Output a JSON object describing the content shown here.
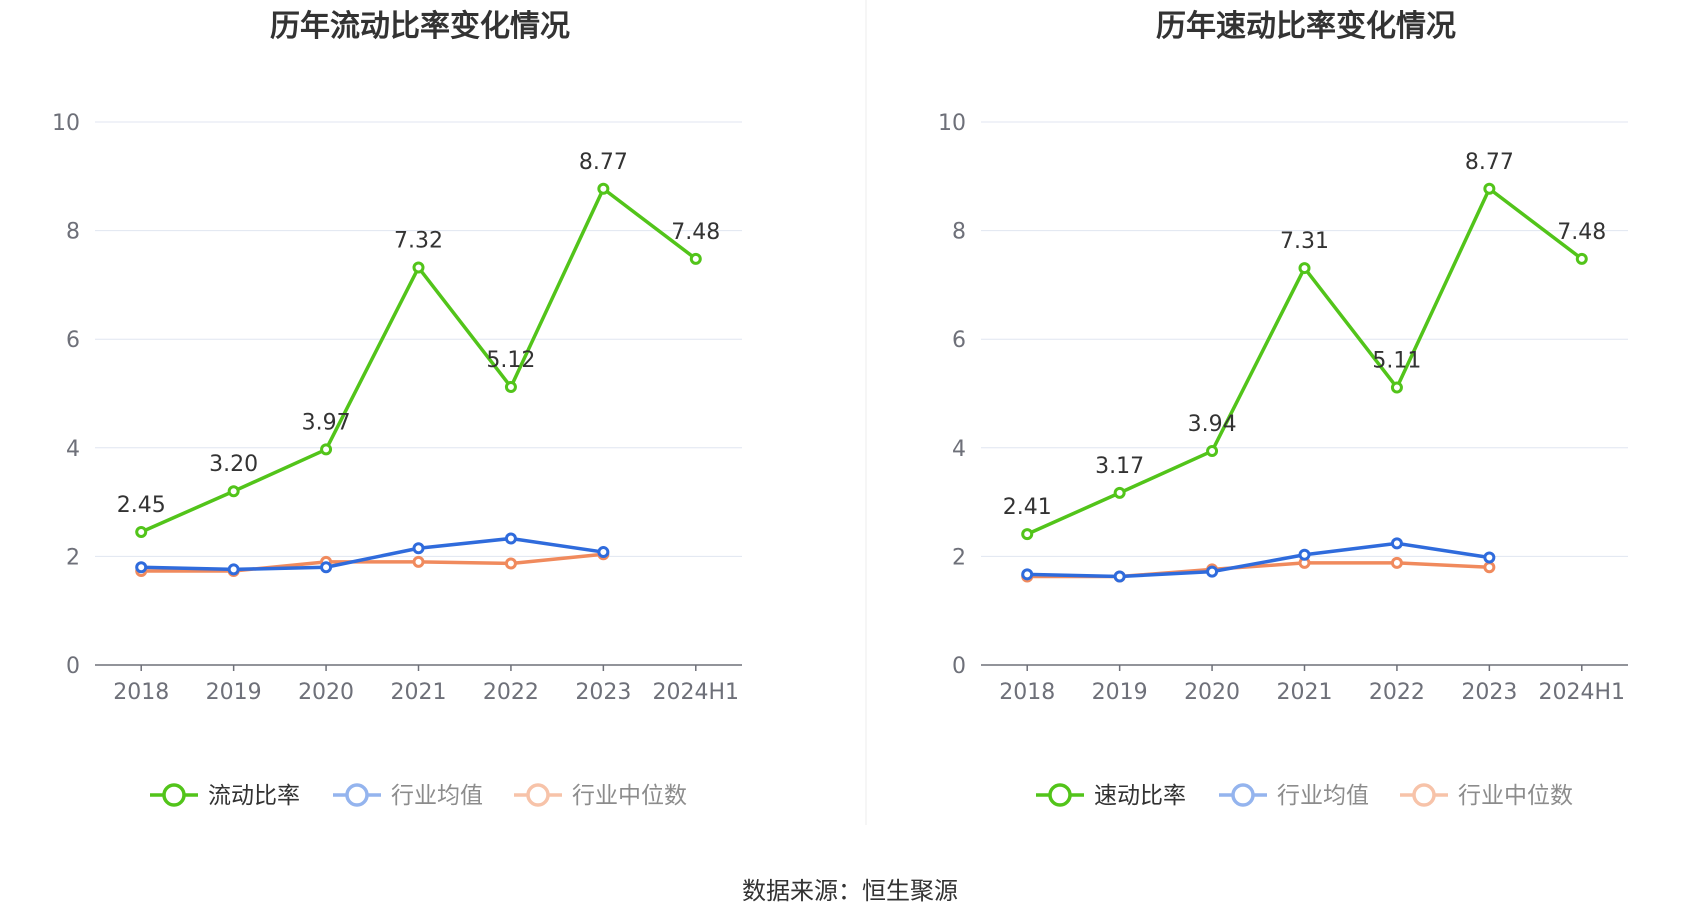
{
  "chart_data": [
    {
      "type": "line",
      "title": "历年流动比率变化情况",
      "categories": [
        "2018",
        "2019",
        "2020",
        "2021",
        "2022",
        "2023",
        "2024H1"
      ],
      "ylim": [
        0,
        10
      ],
      "yticks": [
        "0",
        "2",
        "4",
        "6",
        "8",
        "10"
      ],
      "grid": true,
      "legend_position": "bottom",
      "series": [
        {
          "name": "流动比率",
          "color": "#52c41a",
          "values": [
            2.45,
            3.2,
            3.97,
            7.32,
            5.12,
            8.77,
            7.48
          ],
          "labels": [
            "2.45",
            "3.20",
            "3.97",
            "7.32",
            "5.12",
            "8.77",
            "7.48"
          ]
        },
        {
          "name": "行业均值",
          "color": "#2f6bdc",
          "values": [
            1.8,
            1.76,
            1.8,
            2.15,
            2.33,
            2.08,
            null
          ]
        },
        {
          "name": "行业中位数",
          "color": "#f08a5d",
          "values": [
            1.73,
            1.73,
            1.9,
            1.9,
            1.87,
            2.04,
            null
          ]
        }
      ]
    },
    {
      "type": "line",
      "title": "历年速动比率变化情况",
      "categories": [
        "2018",
        "2019",
        "2020",
        "2021",
        "2022",
        "2023",
        "2024H1"
      ],
      "ylim": [
        0,
        10
      ],
      "yticks": [
        "0",
        "2",
        "4",
        "6",
        "8",
        "10"
      ],
      "grid": true,
      "legend_position": "bottom",
      "series": [
        {
          "name": "速动比率",
          "color": "#52c41a",
          "values": [
            2.41,
            3.17,
            3.94,
            7.31,
            5.11,
            8.77,
            7.48
          ],
          "labels": [
            "2.41",
            "3.17",
            "3.94",
            "7.31",
            "5.11",
            "8.77",
            "7.48"
          ]
        },
        {
          "name": "行业均值",
          "color": "#2f6bdc",
          "values": [
            1.67,
            1.63,
            1.72,
            2.03,
            2.24,
            1.98,
            null
          ]
        },
        {
          "name": "行业中位数",
          "color": "#f08a5d",
          "values": [
            1.63,
            1.63,
            1.76,
            1.88,
            1.88,
            1.8,
            null
          ]
        }
      ]
    }
  ],
  "source": "数据来源：恒生聚源"
}
